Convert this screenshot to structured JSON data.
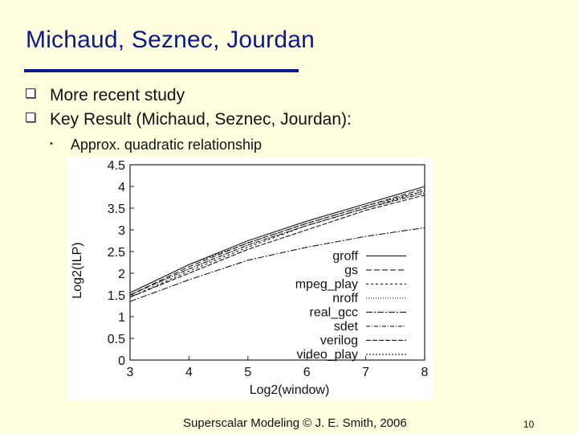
{
  "slide": {
    "title": "Michaud, Seznec, Jourdan",
    "bullets": [
      "More recent study",
      "Key Result (Michaud, Seznec, Jourdan):"
    ],
    "sub_bullet": "Approx. quadratic  relationship",
    "footer": "Superscalar Modeling © J. E. Smith, 2006",
    "page_number": "10",
    "colors": {
      "title": "#0b1a8a",
      "background": "#ffffe0"
    }
  },
  "chart_data": {
    "type": "line",
    "title": "",
    "xlabel": "Log2(window)",
    "ylabel": "Log2(ILP)",
    "xlim": [
      3,
      8
    ],
    "ylim": [
      0,
      4.5
    ],
    "x_ticks": [
      "3",
      "4",
      "5",
      "6",
      "7",
      "8"
    ],
    "y_ticks": [
      "0",
      "0.5",
      "1",
      "1.5",
      "2",
      "2.5",
      "3",
      "3.5",
      "4",
      "4.5"
    ],
    "legend_position": "bottom-right",
    "grid": false,
    "x": [
      3,
      4,
      5,
      6,
      7,
      8
    ],
    "series": [
      {
        "name": "groff",
        "dash": "",
        "values": [
          1.55,
          2.2,
          2.75,
          3.2,
          3.6,
          4.0
        ]
      },
      {
        "name": "gs",
        "dash": "7,3",
        "values": [
          1.5,
          2.15,
          2.7,
          3.15,
          3.55,
          3.95
        ]
      },
      {
        "name": "mpeg_play",
        "dash": "3,3",
        "values": [
          1.45,
          2.05,
          2.6,
          3.1,
          3.5,
          3.9
        ]
      },
      {
        "name": "nroff",
        "dash": "1,2",
        "values": [
          1.5,
          2.1,
          2.65,
          3.1,
          3.5,
          3.85
        ]
      },
      {
        "name": "real_gcc",
        "dash": "8,2,2,2",
        "values": [
          1.35,
          1.85,
          2.3,
          2.6,
          2.85,
          3.05
        ]
      },
      {
        "name": "sdet",
        "dash": "5,2,1,2",
        "values": [
          1.5,
          2.1,
          2.65,
          3.1,
          3.5,
          3.85
        ]
      },
      {
        "name": "verilog",
        "dash": "6,2",
        "values": [
          1.45,
          2.0,
          2.55,
          3.0,
          3.45,
          3.8
        ]
      },
      {
        "name": "video_play",
        "dash": "2,2",
        "values": [
          1.55,
          2.2,
          2.7,
          3.15,
          3.55,
          3.9
        ]
      }
    ]
  }
}
